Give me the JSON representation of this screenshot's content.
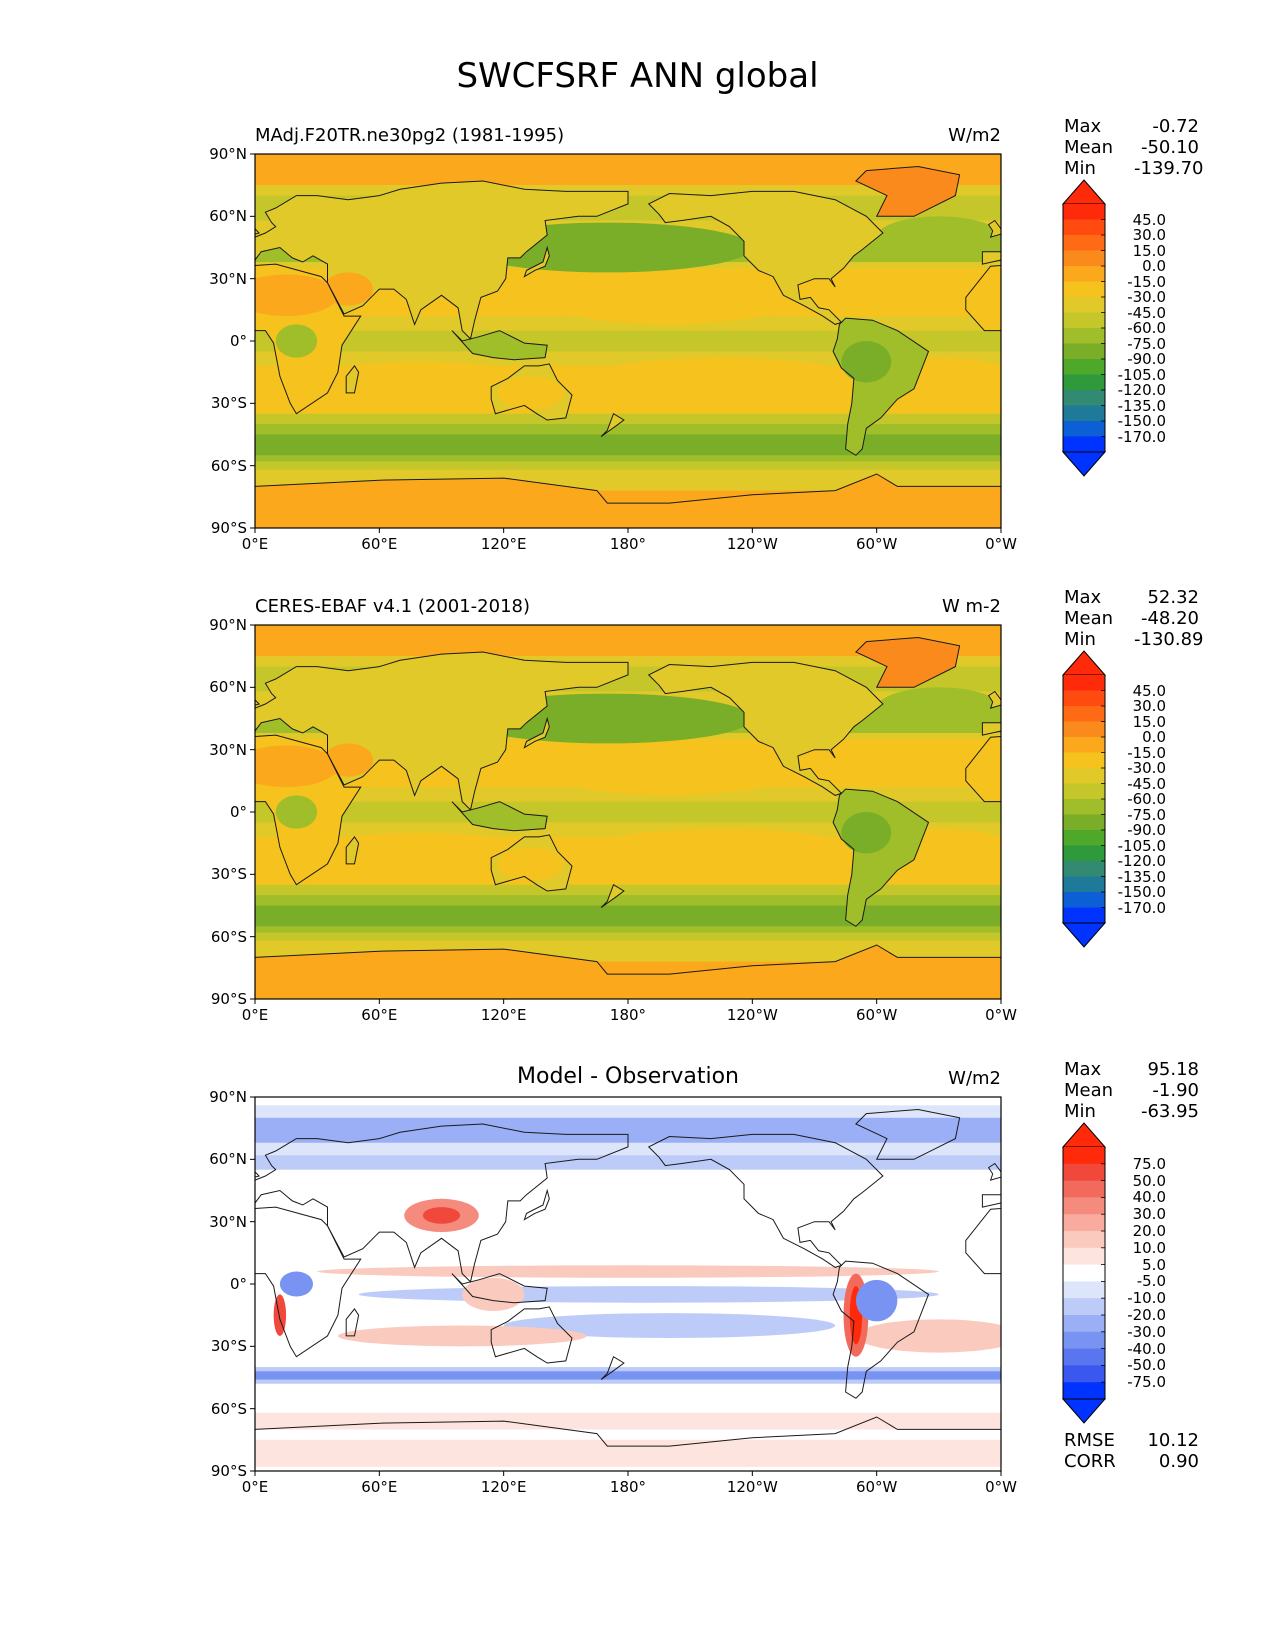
{
  "figure": {
    "title": "SWCFSRF ANN global"
  },
  "panels": [
    {
      "title": "MAdj.F20TR.ne30pg2 (1981-1995)",
      "title_centered": false,
      "units": "W/m2",
      "stats": [
        {
          "label": "Max",
          "value": "-0.72"
        },
        {
          "label": "Mean",
          "value": "-50.10"
        },
        {
          "label": "Min",
          "value": "-139.70"
        }
      ],
      "colorbar_id": "abs"
    },
    {
      "title": "CERES-EBAF v4.1 (2001-2018)",
      "title_centered": false,
      "units": "W m-2",
      "stats": [
        {
          "label": "Max",
          "value": "52.32"
        },
        {
          "label": "Mean",
          "value": "-48.20"
        },
        {
          "label": "Min",
          "value": "-130.89"
        }
      ],
      "colorbar_id": "abs"
    },
    {
      "title": "Model - Observation",
      "title_centered": true,
      "units": "W/m2",
      "stats": [
        {
          "label": "Max",
          "value": "95.18"
        },
        {
          "label": "Mean",
          "value": "-1.90"
        },
        {
          "label": "Min",
          "value": "-63.95"
        }
      ],
      "extra_stats": [
        {
          "label": "RMSE",
          "value": "10.12"
        },
        {
          "label": "CORR",
          "value": "0.90"
        }
      ],
      "colorbar_id": "diff"
    }
  ],
  "map_axes": {
    "lat_ticks": [
      "90°N",
      "60°N",
      "30°N",
      "0°",
      "30°S",
      "60°S",
      "90°S"
    ],
    "lon_ticks": [
      "0°E",
      "60°E",
      "120°E",
      "180°",
      "120°W",
      "60°W",
      "0°W"
    ],
    "lat_range": [
      -90,
      90
    ],
    "lon_range": [
      0,
      360
    ],
    "projection": "plate carree"
  },
  "colorbars": {
    "abs": {
      "levels": [
        "45.0",
        "30.0",
        "15.0",
        "0.0",
        "-15.0",
        "-30.0",
        "-45.0",
        "-60.0",
        "-75.0",
        "-90.0",
        "-105.0",
        "-120.0",
        "-135.0",
        "-150.0",
        "-170.0"
      ],
      "colors": [
        "#ff2a0a",
        "#ff4a10",
        "#ff6a14",
        "#fb8a1c",
        "#fba81c",
        "#f5c21e",
        "#e2c92a",
        "#c4c62a",
        "#9fbe2a",
        "#7aae28",
        "#4ea82a",
        "#2f9a3c",
        "#338a72",
        "#1f7a9a",
        "#0d5fd5",
        "#0033ff"
      ],
      "extend": "both"
    },
    "diff": {
      "levels": [
        "75.0",
        "50.0",
        "40.0",
        "30.0",
        "20.0",
        "10.0",
        "5.0",
        "-5.0",
        "-10.0",
        "-20.0",
        "-30.0",
        "-40.0",
        "-50.0",
        "-75.0"
      ],
      "colors": [
        "#ff2a0a",
        "#f0493c",
        "#f26a5c",
        "#f58b7d",
        "#f8ab9e",
        "#fbcabf",
        "#fde4de",
        "#ffffff",
        "#dde5fb",
        "#bccbf8",
        "#9aaff5",
        "#7993f2",
        "#5976f0",
        "#3a58ef",
        "#0033ff"
      ],
      "extend": "both"
    }
  },
  "map_fields": {
    "abs_ocean": "#f5c21e",
    "abs_polar": "#fba81c",
    "abs_midlat_band": "#7aae28",
    "abs_tropics": "#c4c62a",
    "diff_background": "#ffffff"
  }
}
